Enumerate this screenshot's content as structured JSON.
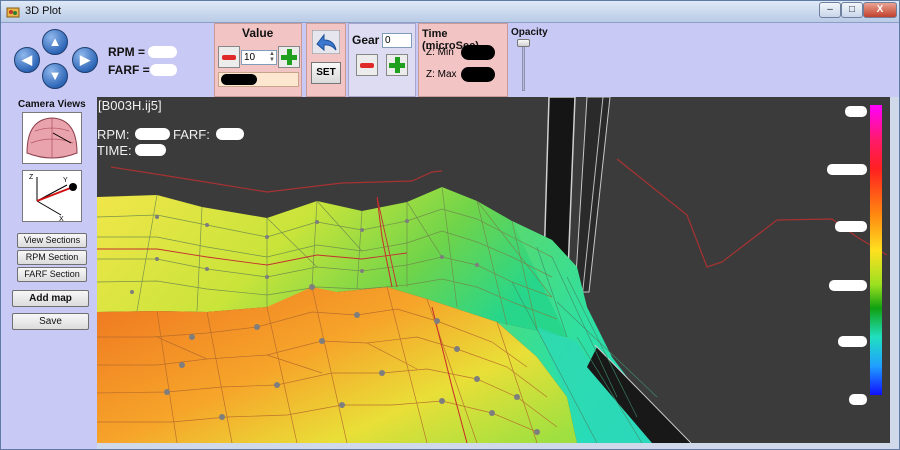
{
  "window": {
    "title": "3D Plot",
    "min_glyph": "–",
    "max_glyph": "□",
    "close_glyph": "X"
  },
  "toolbar": {
    "rpm_label": "RPM =",
    "farf_label": "FARF =",
    "value_title": "Value",
    "value_spinner": "10",
    "set_label": "SET",
    "gear_label": "Gear",
    "gear_value": "0",
    "time_title": "Time (microSec)",
    "zmin_label": "Z: Min",
    "zmax_label": "Z: Max",
    "opacity_label": "Opacity"
  },
  "left": {
    "camera_views": "Camera Views",
    "view_sections": "View Sections",
    "rpm_section": "RPM Section",
    "farf_section": "FARF Section",
    "add_map": "Add map",
    "save": "Save"
  },
  "viewport": {
    "file_label": "[B003H.ij5]",
    "rpm_label": "RPM:",
    "farf_label": "FARF:",
    "time_label": "TIME:"
  },
  "icons": [
    "app-icon",
    "arrow-up-icon",
    "arrow-left-icon",
    "arrow-right-icon",
    "arrow-down-icon",
    "undo-arrow-icon",
    "minus-icon",
    "plus-icon",
    "camera-dome-icon",
    "axis-icon"
  ],
  "colors": {
    "window_bg": "#c9c9f5",
    "panel_pink": "#f3c4c4",
    "viewport_bg": "#3b3b3b"
  }
}
